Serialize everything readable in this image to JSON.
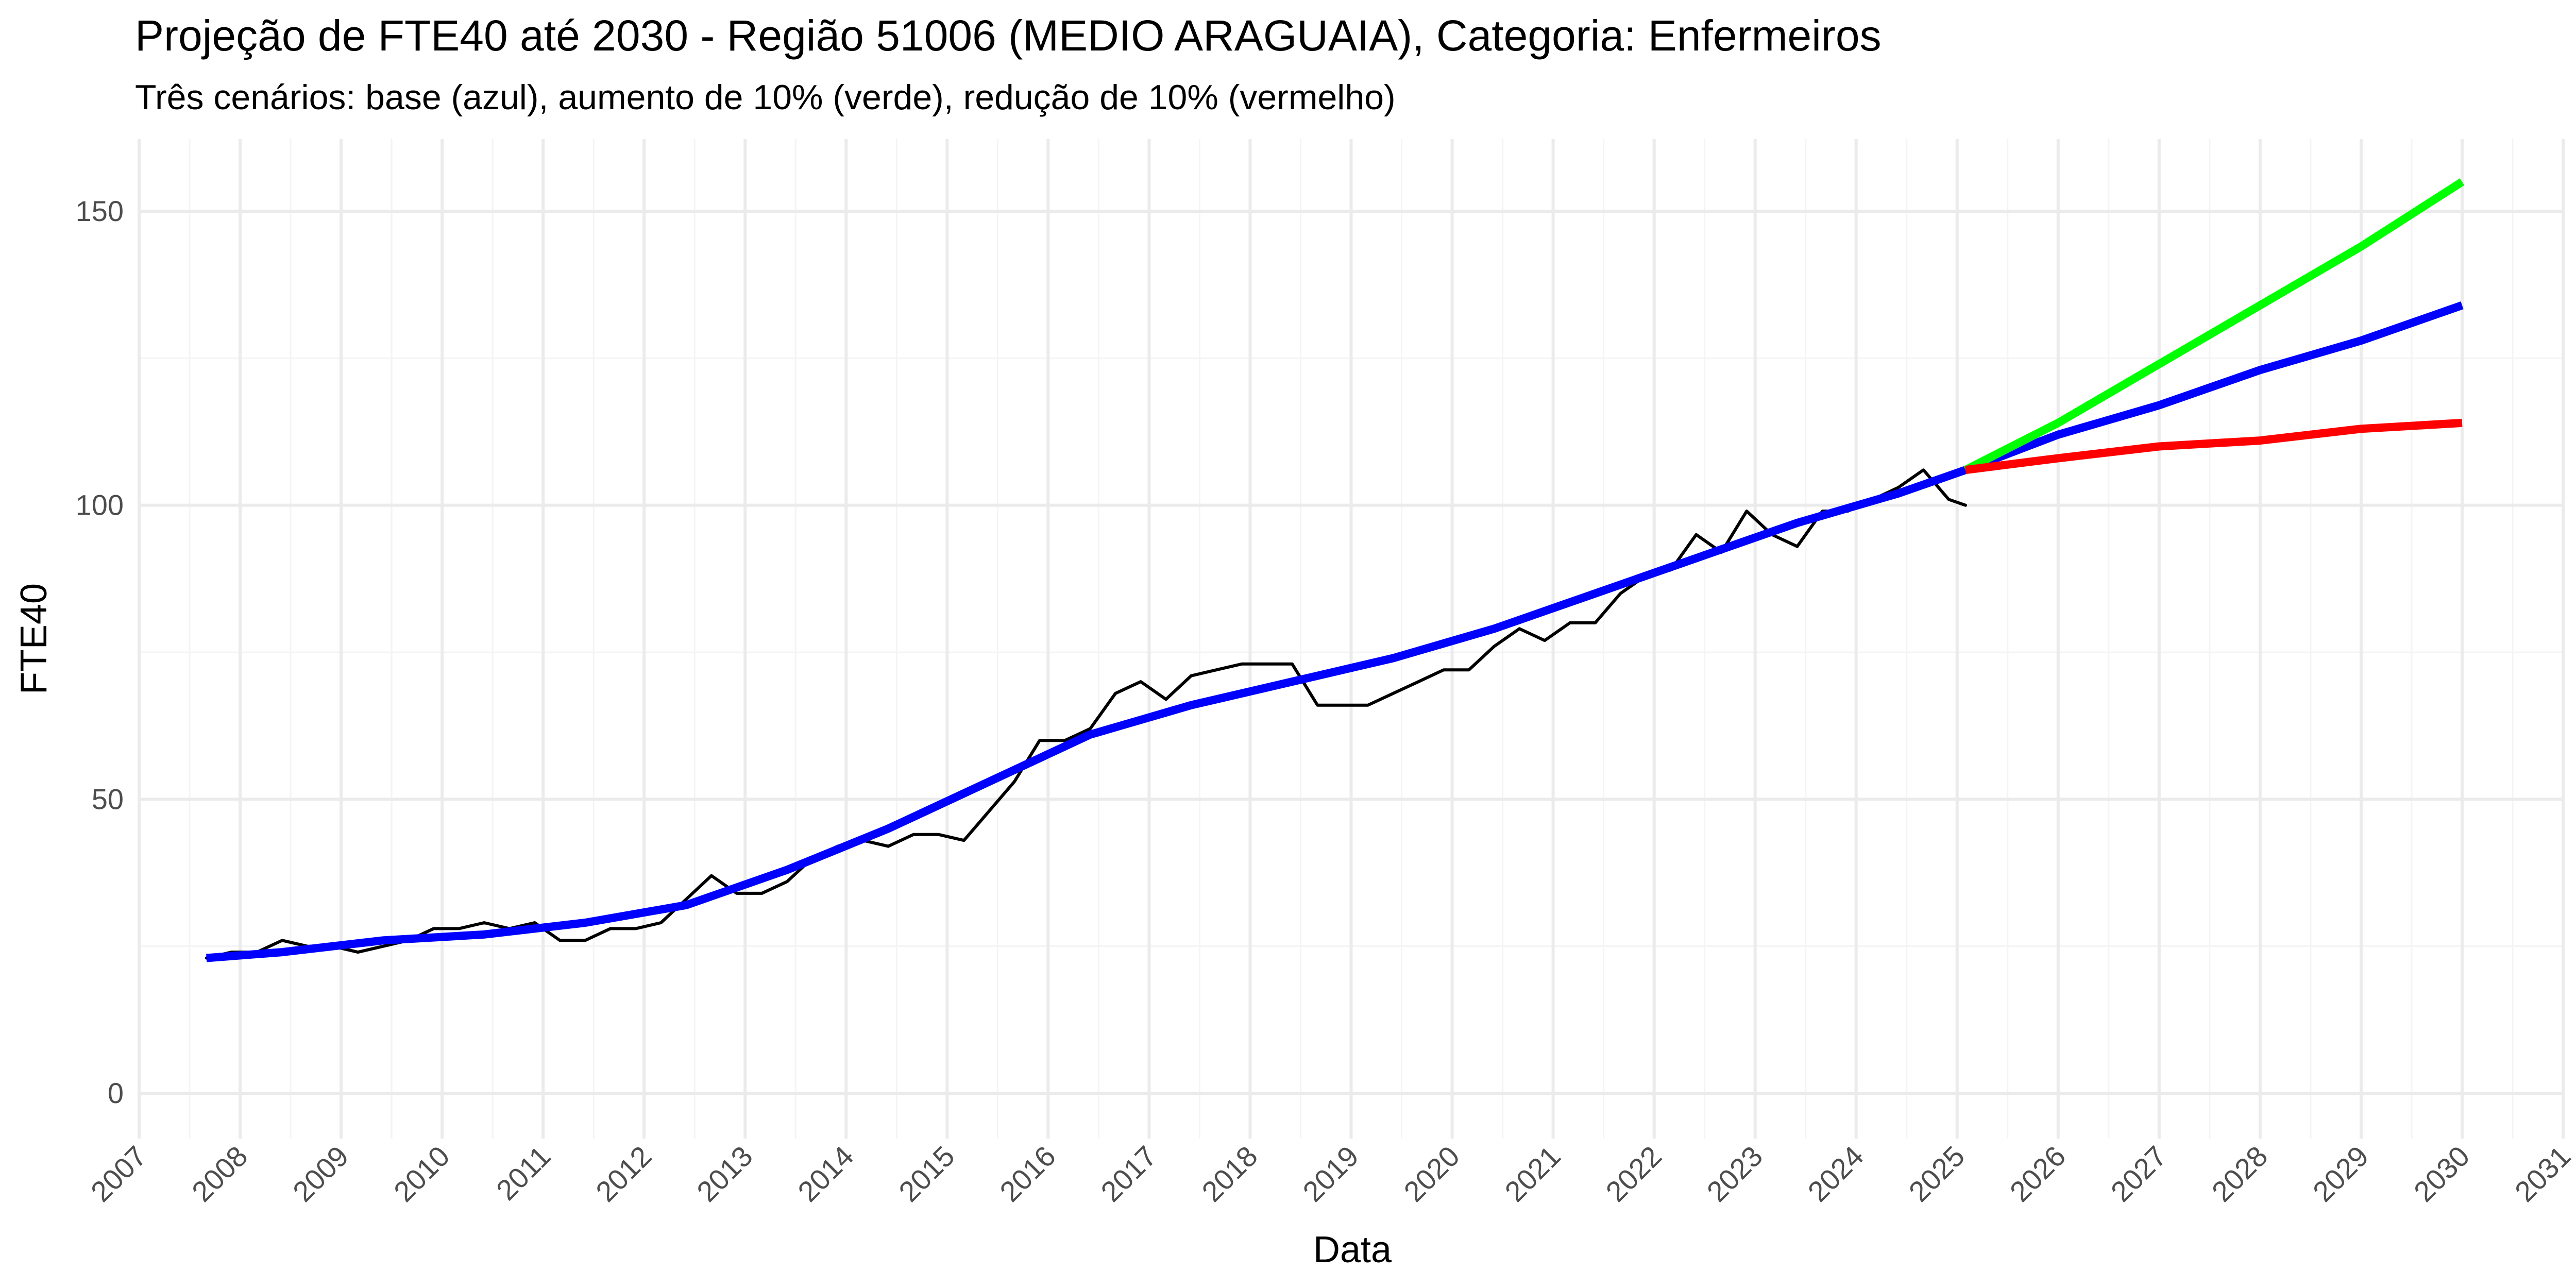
{
  "chart_data": {
    "type": "line",
    "title": "Projeção de FTE40 até 2030 - Região 51006 (MEDIO ARAGUAIA), Categoria: Enfermeiros",
    "subtitle": "Três cenários: base (azul), aumento de 10% (verde), redução de 10% (vermelho)",
    "xlabel": "Data",
    "ylabel": "FTE40",
    "xlim": [
      "2007-01",
      "2031-01"
    ],
    "ylim": [
      0,
      160
    ],
    "x_ticks": [
      "2007",
      "2008",
      "2009",
      "2010",
      "2011",
      "2012",
      "2013",
      "2014",
      "2015",
      "2016",
      "2017",
      "2018",
      "2019",
      "2020",
      "2021",
      "2022",
      "2023",
      "2024",
      "2025",
      "2026",
      "2027",
      "2028",
      "2029",
      "2030",
      "2031"
    ],
    "y_ticks": [
      0,
      50,
      100,
      150
    ],
    "grid": true,
    "legend": "none",
    "series": [
      {
        "color": "#000000",
        "x": [
          "2007-09",
          "2007-12",
          "2008-03",
          "2008-06",
          "2008-09",
          "2008-12",
          "2009-03",
          "2009-06",
          "2009-09",
          "2009-12",
          "2010-03",
          "2010-06",
          "2010-09",
          "2010-12",
          "2011-03",
          "2011-06",
          "2011-09",
          "2011-12",
          "2012-03",
          "2012-06",
          "2012-09",
          "2012-12",
          "2013-03",
          "2013-06",
          "2013-09",
          "2013-12",
          "2014-03",
          "2014-06",
          "2014-09",
          "2014-12",
          "2015-03",
          "2015-06",
          "2015-09",
          "2015-12",
          "2016-03",
          "2016-06",
          "2016-09",
          "2016-12",
          "2017-03",
          "2017-06",
          "2017-09",
          "2017-12",
          "2018-03",
          "2018-06",
          "2018-09",
          "2018-12",
          "2019-03",
          "2019-06",
          "2019-09",
          "2019-12",
          "2020-03",
          "2020-06",
          "2020-09",
          "2020-12",
          "2021-03",
          "2021-06",
          "2021-09",
          "2021-12",
          "2022-03",
          "2022-06",
          "2022-09",
          "2022-12",
          "2023-03",
          "2023-06",
          "2023-09",
          "2023-12",
          "2024-03",
          "2024-06",
          "2024-09",
          "2024-12",
          "2025-02"
        ],
        "values": [
          23,
          24,
          24,
          26,
          25,
          25,
          24,
          25,
          26,
          28,
          28,
          29,
          28,
          29,
          26,
          26,
          28,
          28,
          29,
          33,
          37,
          34,
          34,
          36,
          40,
          42,
          43,
          42,
          44,
          44,
          43,
          48,
          53,
          60,
          60,
          62,
          68,
          70,
          67,
          71,
          72,
          73,
          73,
          73,
          66,
          66,
          66,
          68,
          70,
          72,
          72,
          76,
          79,
          77,
          80,
          80,
          85,
          88,
          89,
          95,
          92,
          99,
          95,
          93,
          99,
          99,
          101,
          103,
          106,
          101,
          100
        ]
      },
      {
        "color": "#0000ff",
        "x": [
          "2007-09",
          "2008-06",
          "2009-06",
          "2010-06",
          "2011-06",
          "2012-06",
          "2013-06",
          "2014-06",
          "2015-06",
          "2016-06",
          "2017-06",
          "2018-06",
          "2019-06",
          "2020-06",
          "2021-06",
          "2022-06",
          "2023-06",
          "2024-06",
          "2025-02",
          "2026-01",
          "2027-01",
          "2028-01",
          "2029-01",
          "2030-01"
        ],
        "values": [
          23,
          24,
          26,
          27,
          29,
          32,
          38,
          45,
          53,
          61,
          66,
          70,
          74,
          79,
          85,
          91,
          97,
          102,
          106,
          112,
          117,
          123,
          128,
          134
        ]
      },
      {
        "color": "#00ff00",
        "x": [
          "2025-02",
          "2026-01",
          "2027-01",
          "2028-01",
          "2029-01",
          "2030-01"
        ],
        "values": [
          106,
          114,
          124,
          134,
          144,
          155
        ]
      },
      {
        "color": "#ff0000",
        "x": [
          "2025-02",
          "2026-01",
          "2027-01",
          "2028-01",
          "2029-01",
          "2030-01"
        ],
        "values": [
          106,
          108,
          110,
          111,
          113,
          114
        ]
      }
    ]
  }
}
